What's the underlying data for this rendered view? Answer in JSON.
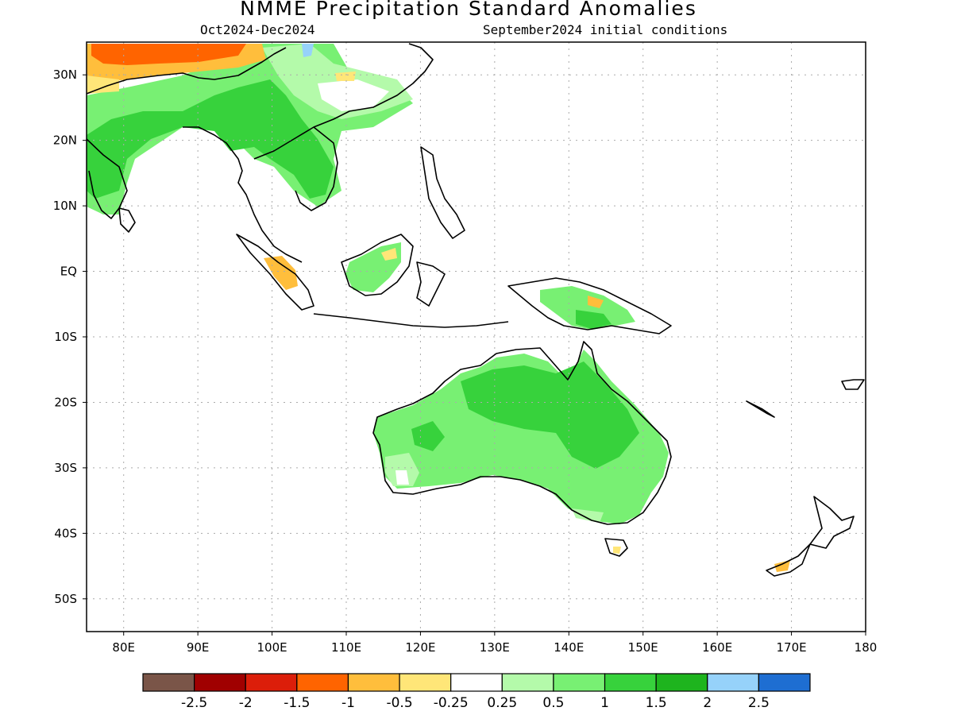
{
  "title": "NMME Precipitation Standard Anomalies",
  "subtitle_left": "Oct2024-Dec2024",
  "subtitle_right": "September2024 initial conditions",
  "map": {
    "lon_range": [
      75,
      180
    ],
    "lat_range": [
      -55,
      35
    ],
    "lat_labels": [
      {
        "lat": 30,
        "label": "30N"
      },
      {
        "lat": 20,
        "label": "20N"
      },
      {
        "lat": 10,
        "label": "10N"
      },
      {
        "lat": 0,
        "label": "EQ"
      },
      {
        "lat": -10,
        "label": "10S"
      },
      {
        "lat": -20,
        "label": "20S"
      },
      {
        "lat": -30,
        "label": "30S"
      },
      {
        "lat": -40,
        "label": "40S"
      },
      {
        "lat": -50,
        "label": "50S"
      }
    ],
    "lon_labels": [
      {
        "lon": 80,
        "label": "80E"
      },
      {
        "lon": 90,
        "label": "90E"
      },
      {
        "lon": 100,
        "label": "100E"
      },
      {
        "lon": 110,
        "label": "110E"
      },
      {
        "lon": 120,
        "label": "120E"
      },
      {
        "lon": 130,
        "label": "130E"
      },
      {
        "lon": 140,
        "label": "140E"
      },
      {
        "lon": 150,
        "label": "150E"
      },
      {
        "lon": 160,
        "label": "160E"
      },
      {
        "lon": 170,
        "label": "170E"
      },
      {
        "lon": 180,
        "label": "180"
      }
    ],
    "gridlines": true
  },
  "colorbar": {
    "colors": [
      "#7a5548",
      "#a00000",
      "#dc1e0a",
      "#ff6400",
      "#ffbe3c",
      "#ffe678",
      "#ffffff",
      "#b4faaa",
      "#78f073",
      "#37d23c",
      "#1eb41e",
      "#96d2fa",
      "#1e6ed2"
    ],
    "labels": [
      "-2.5",
      "-2",
      "-1.5",
      "-1",
      "-0.5",
      "-0.25",
      "0.25",
      "0.5",
      "1",
      "1.5",
      "2",
      "2.5"
    ]
  }
}
